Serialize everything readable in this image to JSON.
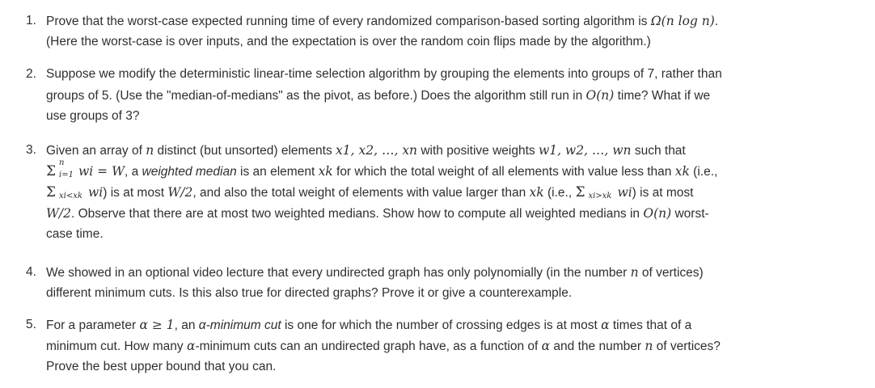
{
  "problems": [
    {
      "number": "1.",
      "lines": [
        {
          "before": "Prove that the worst-case expected running time of every randomized comparison-based sorting algorithm is ",
          "math": "Ω(n log n)",
          "after": "."
        },
        {
          "text": "(Here the worst-case is over inputs, and the expectation is over the random coin flips made by the algorithm.)"
        }
      ]
    },
    {
      "number": "2.",
      "lines": [
        {
          "text": "Suppose we modify the deterministic linear-time selection algorithm by grouping the elements into groups of 7, rather than"
        },
        {
          "before": "groups of 5. (Use the \"median-of-medians\" as the pivot, as before.) Does the algorithm still run in ",
          "math": "O(n)",
          "after": " time? What if we"
        },
        {
          "text": "use groups of 3?"
        }
      ]
    },
    {
      "number": "3.",
      "lines": [
        {
          "a": "Given an array of ",
          "m1": "n",
          "b": " distinct (but unsorted) elements ",
          "m2": "x1, x2, …, xn",
          "c": " with positive weights ",
          "m3": "w1, w2, …, wn",
          "d": " such that"
        },
        {
          "sum_upper": "n",
          "sum_lower": "i=1",
          "m1": "wi = W",
          "a": ", a ",
          "em": "weighted median",
          "b": " is an element ",
          "m2": "xk",
          "c": " for which the total weight of all elements with value less than ",
          "m3": "xk",
          "d": " (i.e.,"
        },
        {
          "sum_lower": "xi<xk",
          "m1": "wi",
          "a": ") is at most ",
          "m2": "W/2",
          "b": ", and also the total weight of elements with value larger than ",
          "m3": "xk",
          "c": " (i.e., ",
          "sum2_lower": "xi>xk",
          "m4": "wi",
          "d": ") is at most"
        },
        {
          "m1": "W/2",
          "a": ". Observe that there are at most two weighted medians. Show how to compute all weighted medians in ",
          "m2": "O(n)",
          "b": " worst-"
        },
        {
          "text": "case time."
        }
      ]
    },
    {
      "number": "4.",
      "lines": [
        {
          "before": "We showed in an optional video lecture that every undirected graph has only polynomially (in the number ",
          "math": "n",
          "after": " of vertices)"
        },
        {
          "text": "different minimum cuts. Is this also true for directed graphs? Prove it or give a counterexample."
        }
      ]
    },
    {
      "number": "5.",
      "lines": [
        {
          "a": "For a parameter ",
          "m1": "α ≥ 1",
          "b": ", an ",
          "em": "α-minimum cut",
          "c": " is one for which the number of crossing edges is at most ",
          "m2": "α",
          "d": " times that of a"
        },
        {
          "a": "minimum cut. How many ",
          "m1": "α",
          "b": "-minimum cuts can an undirected graph have, as a function of ",
          "m2": "α",
          "c": " and the number ",
          "m3": "n",
          "d": " of vertices?"
        },
        {
          "text": "Prove the best upper bound that you can."
        }
      ]
    }
  ]
}
